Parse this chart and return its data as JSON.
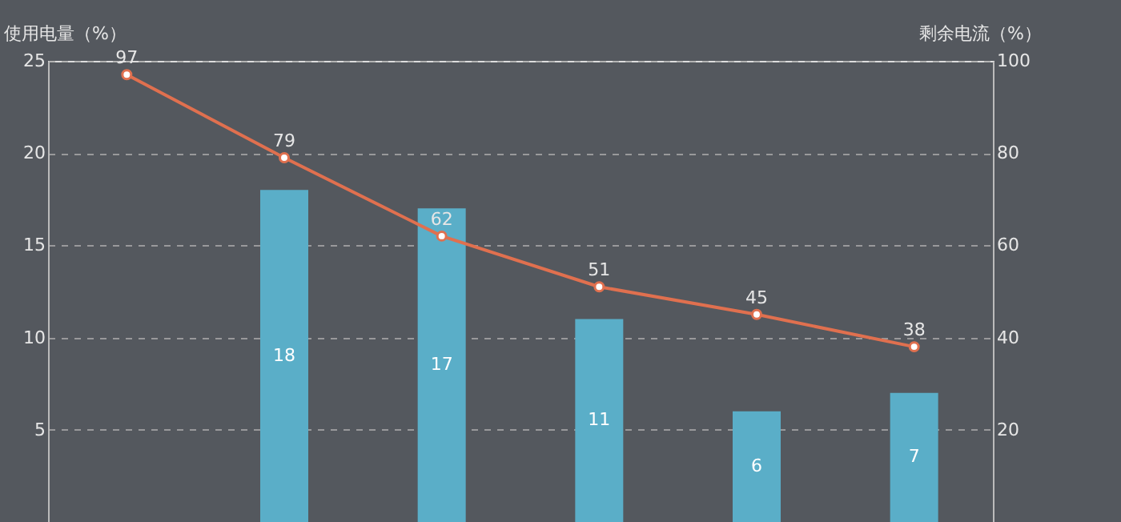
{
  "chart_data": {
    "type": "bar",
    "ylabel": "使用电量（%）",
    "y2label": "剩余电流（%）",
    "categories": [
      null,
      null,
      null,
      null,
      null,
      null
    ],
    "series": [
      {
        "color": "#5aaec8",
        "values": [
          null,
          18,
          17,
          11,
          6,
          7
        ]
      },
      {
        "type": "line",
        "axis": "y2",
        "color": "#e0704f",
        "values": [
          97,
          79,
          62,
          51,
          45,
          38
        ]
      }
    ],
    "ylim": [
      0,
      25
    ],
    "yticks": [
      5,
      10,
      15,
      20,
      25
    ],
    "y2lim": [
      0,
      100
    ],
    "y2ticks": [
      20,
      40,
      60,
      80,
      100
    ],
    "data_labels": true,
    "grid": "y",
    "marker": "circle",
    "tick_labels": "y"
  }
}
